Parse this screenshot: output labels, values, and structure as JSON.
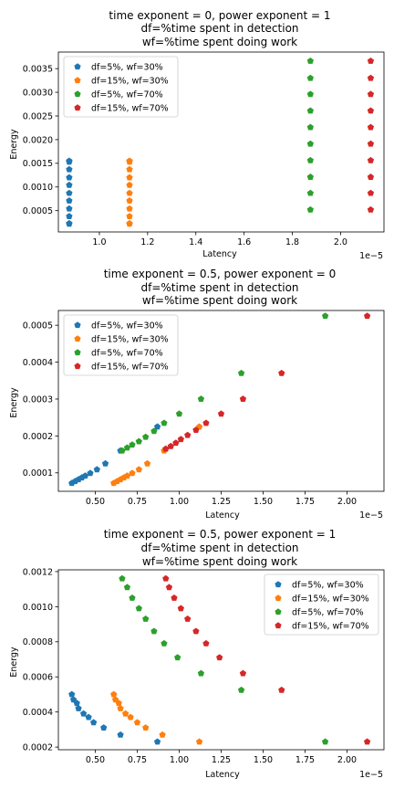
{
  "chart_data": [
    {
      "type": "scatter",
      "title": [
        "time exponent = 0, power exponent = 1",
        "df=%time spent in detection",
        "wf=%time spent doing work"
      ],
      "xlabel": "Latency",
      "ylabel": "Energy",
      "x_offset_text": "1e−5",
      "x_scale_factor": 1e-05,
      "xlim": [
        0.83,
        2.18
      ],
      "ylim": [
        5e-05,
        0.00385
      ],
      "xticks": [
        1.0,
        1.2,
        1.4,
        1.6,
        1.8,
        2.0
      ],
      "xtick_labels": [
        "1.0",
        "1.2",
        "1.4",
        "1.6",
        "1.8",
        "2.0"
      ],
      "yticks": [
        0.0005,
        0.001,
        0.0015,
        0.002,
        0.0025,
        0.003,
        0.0035
      ],
      "ytick_labels": [
        "0.0005",
        "0.0010",
        "0.0015",
        "0.0020",
        "0.0025",
        "0.0030",
        "0.0035"
      ],
      "legend_loc": "upper-left",
      "grid": false,
      "series": [
        {
          "name": "df=5%, wf=30%",
          "color": "#1f77b4",
          "x": [
            0.875,
            0.875,
            0.875,
            0.875,
            0.875,
            0.875,
            0.875,
            0.875,
            0.875,
            0.875,
            0.875
          ],
          "y": [
            0.00022,
            0.00038,
            0.00054,
            0.00071,
            0.00087,
            0.00104,
            0.0012,
            0.00137,
            0.00153,
            0.00023,
            0.00155
          ]
        },
        {
          "name": "df=15%, wf=30%",
          "color": "#ff7f0e",
          "x": [
            1.125,
            1.125,
            1.125,
            1.125,
            1.125,
            1.125,
            1.125,
            1.125,
            1.125,
            1.125,
            1.125
          ],
          "y": [
            0.00022,
            0.00038,
            0.00054,
            0.00071,
            0.00087,
            0.00104,
            0.0012,
            0.00137,
            0.00153,
            0.00023,
            0.00155
          ]
        },
        {
          "name": "df=5%, wf=70%",
          "color": "#2ca02c",
          "x": [
            1.875,
            1.875,
            1.875,
            1.875,
            1.875,
            1.875,
            1.875,
            1.875,
            1.875,
            1.875
          ],
          "y": [
            0.00052,
            0.00087,
            0.00121,
            0.00156,
            0.00191,
            0.00226,
            0.00261,
            0.00296,
            0.0033,
            0.00366
          ]
        },
        {
          "name": "df=15%, wf=70%",
          "color": "#d62728",
          "x": [
            2.125,
            2.125,
            2.125,
            2.125,
            2.125,
            2.125,
            2.125,
            2.125,
            2.125,
            2.125
          ],
          "y": [
            0.00052,
            0.00087,
            0.00121,
            0.00156,
            0.00191,
            0.00226,
            0.00261,
            0.00296,
            0.0033,
            0.00366
          ]
        }
      ]
    },
    {
      "type": "scatter",
      "title": [
        "time exponent = 0.5, power exponent = 0",
        "df=%time spent in detection",
        "wf=%time spent doing work"
      ],
      "xlabel": "Latency",
      "ylabel": "Energy",
      "x_offset_text": "1e−5",
      "x_scale_factor": 1e-05,
      "xlim": [
        0.28,
        2.22
      ],
      "ylim": [
        5e-05,
        0.00054
      ],
      "xticks": [
        0.5,
        0.75,
        1.0,
        1.25,
        1.5,
        1.75,
        2.0
      ],
      "xtick_labels": [
        "0.50",
        "0.75",
        "1.00",
        "1.25",
        "1.50",
        "1.75",
        "2.00"
      ],
      "yticks": [
        0.0001,
        0.0002,
        0.0003,
        0.0004,
        0.0005
      ],
      "ytick_labels": [
        "0.0001",
        "0.0002",
        "0.0003",
        "0.0004",
        "0.0005"
      ],
      "legend_loc": "upper-left",
      "grid": false,
      "series": [
        {
          "name": "df=5%, wf=30%",
          "color": "#1f77b4",
          "x": [
            0.36,
            0.38,
            0.4,
            0.42,
            0.44,
            0.47,
            0.51,
            0.56,
            0.65,
            0.87
          ],
          "y": [
            7.2e-05,
            7.7e-05,
            8.2e-05,
            8.7e-05,
            9.2e-05,
            9.9e-05,
            0.000109,
            0.000125,
            0.00016,
            0.000225
          ]
        },
        {
          "name": "df=15%, wf=30%",
          "color": "#ff7f0e",
          "x": [
            0.61,
            0.63,
            0.65,
            0.67,
            0.69,
            0.72,
            0.76,
            0.81,
            0.91,
            1.12
          ],
          "y": [
            7.2e-05,
            7.7e-05,
            8.2e-05,
            8.7e-05,
            9.2e-05,
            9.9e-05,
            0.000109,
            0.000125,
            0.00016,
            0.000225
          ]
        },
        {
          "name": "df=5%, wf=70%",
          "color": "#2ca02c",
          "x": [
            0.66,
            0.69,
            0.72,
            0.76,
            0.8,
            0.85,
            0.91,
            1.0,
            1.13,
            1.37,
            1.87
          ],
          "y": [
            0.00016,
            0.000168,
            0.000176,
            0.000185,
            0.000197,
            0.000213,
            0.000235,
            0.00026,
            0.0003,
            0.00037,
            0.000525
          ]
        },
        {
          "name": "df=15%, wf=70%",
          "color": "#d62728",
          "x": [
            0.92,
            0.95,
            0.98,
            1.01,
            1.05,
            1.1,
            1.16,
            1.25,
            1.38,
            1.61,
            2.12
          ],
          "y": [
            0.000165,
            0.000172,
            0.000181,
            0.000191,
            0.000202,
            0.000216,
            0.000235,
            0.00026,
            0.0003,
            0.00037,
            0.000525
          ]
        }
      ]
    },
    {
      "type": "scatter",
      "title": [
        "time exponent = 0.5, power exponent = 1",
        "df=%time spent in detection",
        "wf=%time spent doing work"
      ],
      "xlabel": "Latency",
      "ylabel": "Energy",
      "x_offset_text": "1e−5",
      "x_scale_factor": 1e-05,
      "xlim": [
        0.28,
        2.22
      ],
      "ylim": [
        0.000185,
        0.00121
      ],
      "xticks": [
        0.5,
        0.75,
        1.0,
        1.25,
        1.5,
        1.75,
        2.0
      ],
      "xtick_labels": [
        "0.50",
        "0.75",
        "1.00",
        "1.25",
        "1.50",
        "1.75",
        "2.00"
      ],
      "yticks": [
        0.0002,
        0.0004,
        0.0006,
        0.0008,
        0.001,
        0.0012
      ],
      "ytick_labels": [
        "0.0002",
        "0.0004",
        "0.0006",
        "0.0008",
        "0.0010",
        "0.0012"
      ],
      "legend_loc": "upper-right",
      "grid": false,
      "series": [
        {
          "name": "df=5%, wf=30%",
          "color": "#1f77b4",
          "x": [
            0.36,
            0.37,
            0.39,
            0.4,
            0.43,
            0.46,
            0.49,
            0.55,
            0.65,
            0.87
          ],
          "y": [
            0.0005,
            0.00047,
            0.00045,
            0.00042,
            0.00039,
            0.00037,
            0.00034,
            0.00031,
            0.00027,
            0.00023
          ]
        },
        {
          "name": "df=15%, wf=30%",
          "color": "#ff7f0e",
          "x": [
            0.61,
            0.62,
            0.64,
            0.65,
            0.68,
            0.71,
            0.75,
            0.8,
            0.9,
            1.12
          ],
          "y": [
            0.0005,
            0.00047,
            0.00045,
            0.00042,
            0.00039,
            0.00037,
            0.00034,
            0.00031,
            0.00027,
            0.00023
          ]
        },
        {
          "name": "df=5%, wf=70%",
          "color": "#2ca02c",
          "x": [
            0.66,
            0.69,
            0.72,
            0.76,
            0.8,
            0.85,
            0.91,
            0.99,
            1.13,
            1.37,
            1.87
          ],
          "y": [
            0.00116,
            0.00111,
            0.00105,
            0.00099,
            0.00093,
            0.00086,
            0.00079,
            0.00071,
            0.00062,
            0.000525,
            0.00023
          ]
        },
        {
          "name": "df=15%, wf=70%",
          "color": "#d62728",
          "x": [
            0.92,
            0.94,
            0.97,
            1.01,
            1.05,
            1.1,
            1.16,
            1.24,
            1.38,
            1.61,
            2.12
          ],
          "y": [
            0.00116,
            0.00111,
            0.00105,
            0.00099,
            0.00093,
            0.00086,
            0.00079,
            0.00071,
            0.00062,
            0.000525,
            0.00023
          ]
        }
      ]
    }
  ]
}
